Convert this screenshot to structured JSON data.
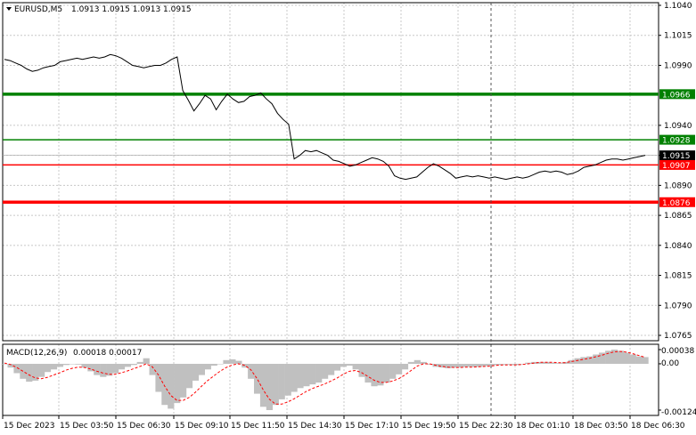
{
  "header": {
    "symbol_timeframe": "EURUSD,M5",
    "ohlc": "1.0913 1.0915 1.0913 1.0915"
  },
  "macd": {
    "label": "MACD(12,26,9)",
    "values": "0.00018 0.00017",
    "y_ticks": [
      "0.00038",
      "0.00",
      "-0.00124"
    ]
  },
  "chart_data": [
    {
      "type": "line",
      "panel": "price",
      "y_ticks": [
        "1.1040",
        "1.1015",
        "1.0990",
        "1.0940",
        "1.0915",
        "1.0890",
        "1.0865",
        "1.0840",
        "1.0815",
        "1.0790",
        "1.0765"
      ],
      "x_ticks": [
        "15 Dec 2023",
        "15 Dec 03:50",
        "15 Dec 06:30",
        "15 Dec 09:10",
        "15 Dec 11:50",
        "15 Dec 14:30",
        "15 Dec 17:10",
        "15 Dec 19:50",
        "15 Dec 22:30",
        "18 Dec 01:10",
        "18 Dec 03:50",
        "18 Dec 06:30"
      ],
      "ylim": [
        1.076,
        1.1043
      ],
      "grid": true,
      "levels": [
        {
          "value": 1.0966,
          "label": "1.0966",
          "color": "#008000",
          "weight": "thick"
        },
        {
          "value": 1.0928,
          "label": "1.0928",
          "color": "#008000",
          "weight": "thin"
        },
        {
          "value": 1.0915,
          "label": "1.0915",
          "color": "#000000",
          "weight": "current"
        },
        {
          "value": 1.0907,
          "label": "1.0907",
          "color": "#ff0000",
          "weight": "thin"
        },
        {
          "value": 1.0876,
          "label": "1.0876",
          "color": "#ff0000",
          "weight": "thick"
        }
      ],
      "series": [
        {
          "values": [
            1.0995,
            1.0994,
            1.0992,
            1.099,
            1.0987,
            1.0985,
            1.0986,
            1.0988,
            1.0989,
            1.099,
            1.0993,
            1.0994,
            1.0995,
            1.0996,
            1.0995,
            1.0996,
            1.0997,
            1.0996,
            1.0997,
            1.0999,
            1.0998,
            1.0996,
            1.0993,
            1.099,
            1.0989,
            1.0988,
            1.0989,
            1.099,
            1.099,
            1.0992,
            1.0995,
            1.0997,
            1.0969,
            1.0961,
            1.0952,
            1.0958,
            1.0965,
            1.0962,
            1.0953,
            1.096,
            1.0966,
            1.0962,
            1.0959,
            1.096,
            1.0964,
            1.0965,
            1.0967,
            1.0962,
            1.0958,
            1.095,
            1.0945,
            1.0941,
            1.0912,
            1.0915,
            1.0919,
            1.0918,
            1.0919,
            1.0917,
            1.0915,
            1.0911,
            1.091,
            1.0908,
            1.0906,
            1.0907,
            1.0909,
            1.0911,
            1.0913,
            1.0912,
            1.091,
            1.0906,
            1.0898,
            1.0896,
            1.0895,
            1.0896,
            1.0897,
            1.0901,
            1.0905,
            1.0908,
            1.0906,
            1.0903,
            1.09,
            1.0896,
            1.0897,
            1.0898,
            1.0897,
            1.0898,
            1.0897,
            1.0896,
            1.0897,
            1.0896,
            1.0895,
            1.0896,
            1.0897,
            1.0896,
            1.0897,
            1.0899,
            1.0901,
            1.0902,
            1.0901,
            1.0902,
            1.0901,
            1.0899,
            1.09,
            1.0902,
            1.0905,
            1.0906,
            1.0907,
            1.0909,
            1.0911,
            1.0912,
            1.0912,
            1.0911,
            1.0912,
            1.0913,
            1.0914,
            1.0915
          ]
        }
      ]
    },
    {
      "type": "bar",
      "panel": "macd",
      "ylim": [
        -0.00135,
        0.00045
      ],
      "series": [
        {
          "values": [
            0.0,
            -0.0001,
            -0.00025,
            -0.0004,
            -0.00048,
            -0.00045,
            -0.00035,
            -0.00022,
            -0.00015,
            -8e-05,
            -3e-05,
            0.0,
            -2e-05,
            -0.0001,
            -0.0002,
            -0.0003,
            -0.00035,
            -0.00032,
            -0.00025,
            -0.00015,
            -8e-05,
            -3e-05,
            5e-05,
            0.00015,
            -0.0003,
            -0.00075,
            -0.0011,
            -0.0012,
            -0.00105,
            -0.0009,
            -0.00065,
            -0.00045,
            -0.0003,
            -0.00015,
            -5e-05,
            0.0,
            0.0001,
            0.00012,
            8e-05,
            -0.0001,
            -0.0004,
            -0.0008,
            -0.00115,
            -0.00124,
            -0.0011,
            -0.00095,
            -0.00085,
            -0.00075,
            -0.00065,
            -0.0006,
            -0.00055,
            -0.0005,
            -0.0004,
            -0.0003,
            -0.00018,
            -8e-05,
            -5e-05,
            -0.00015,
            -0.00035,
            -0.0005,
            -0.0006,
            -0.00058,
            -0.0005,
            -0.0004,
            -0.00028,
            -0.00015,
            5e-05,
            0.0001,
            5e-05,
            -2e-05,
            -8e-05,
            -0.0001,
            -0.00012,
            -0.0001,
            -0.0001,
            -8e-05,
            -8e-05,
            -8e-05,
            -6e-05,
            -5e-05,
            -3e-05,
            -2e-05,
            -2e-05,
            -3e-05,
            0.0,
            3e-05,
            5e-05,
            5e-05,
            5e-05,
            3e-05,
            2e-05,
            5e-05,
            0.0001,
            0.00015,
            0.00018,
            0.0002,
            0.00025,
            0.0003,
            0.00035,
            0.00038,
            0.00035,
            0.0003,
            0.00025,
            0.0002,
            0.00018
          ]
        },
        {
          "values": [
            2e-05,
            -2e-05,
            -0.0001,
            -0.0002,
            -0.0003,
            -0.00038,
            -0.0004,
            -0.00036,
            -0.0003,
            -0.00024,
            -0.00017,
            -0.00012,
            -9e-05,
            -0.0001,
            -0.00014,
            -0.0002,
            -0.00025,
            -0.00028,
            -0.00028,
            -0.00024,
            -0.00019,
            -0.00013,
            -7e-05,
            0.0,
            -8e-05,
            -0.0003,
            -0.0006,
            -0.00085,
            -0.00098,
            -0.00098,
            -0.0009,
            -0.00076,
            -0.0006,
            -0.00045,
            -0.00032,
            -0.0002,
            -0.0001,
            -3e-05,
            0.0,
            -4e-05,
            -0.00016,
            -0.0004,
            -0.0007,
            -0.00095,
            -0.00108,
            -0.00108,
            -0.00102,
            -0.00094,
            -0.00084,
            -0.00074,
            -0.00066,
            -0.0006,
            -0.00054,
            -0.00046,
            -0.00038,
            -0.00028,
            -0.0002,
            -0.00018,
            -0.00024,
            -0.00034,
            -0.00044,
            -0.0005,
            -0.0005,
            -0.00046,
            -0.0004,
            -0.0003,
            -0.00018,
            -6e-05,
            0.0,
            0.0,
            -4e-05,
            -7e-05,
            -9e-05,
            -0.0001,
            -0.0001,
            -9e-05,
            -9e-05,
            -8e-05,
            -7e-05,
            -6e-05,
            -4e-05,
            -3e-05,
            -3e-05,
            -3e-05,
            -2e-05,
            0.0,
            2e-05,
            4e-05,
            4e-05,
            4e-05,
            3e-05,
            3e-05,
            6e-05,
            9e-05,
            0.00012,
            0.00015,
            0.00019,
            0.00023,
            0.00028,
            0.00032,
            0.00033,
            0.00031,
            0.00027,
            0.00022,
            0.00017
          ]
        }
      ]
    }
  ],
  "colors": {
    "price_line": "#000000",
    "grid": "#c8c8c8",
    "histogram": "#c0c0c0",
    "signal": "#ff0000",
    "vline": "#555555"
  }
}
